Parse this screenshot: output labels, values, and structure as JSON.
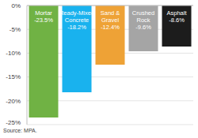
{
  "chart_data": {
    "type": "bar",
    "categories": [
      "Mortar",
      "Ready-Mixed Concrete",
      "Sand & Gravel",
      "Crushed Rock",
      "Asphalt"
    ],
    "values": [
      -23.5,
      -18.2,
      -12.4,
      -9.6,
      -8.6
    ],
    "value_labels": [
      "-23.5%",
      "-18.2%",
      "-12.4%",
      "-9.6%",
      "-8.6%"
    ],
    "colors": [
      "#70b244",
      "#19b2ee",
      "#eea236",
      "#a5a5a5",
      "#1c1c1c"
    ],
    "ylim": [
      -25,
      0
    ],
    "yticks": [
      {
        "value": 0,
        "label": "0%"
      },
      {
        "value": -5,
        "label": "-5%"
      },
      {
        "value": -10,
        "label": "-10%"
      },
      {
        "value": -15,
        "label": "-15%"
      },
      {
        "value": -20,
        "label": "-20%"
      },
      {
        "value": -25,
        "label": "-25%"
      }
    ],
    "grid": true,
    "data_labels": true,
    "tick_labels": "y",
    "source": "Source: MPA."
  }
}
